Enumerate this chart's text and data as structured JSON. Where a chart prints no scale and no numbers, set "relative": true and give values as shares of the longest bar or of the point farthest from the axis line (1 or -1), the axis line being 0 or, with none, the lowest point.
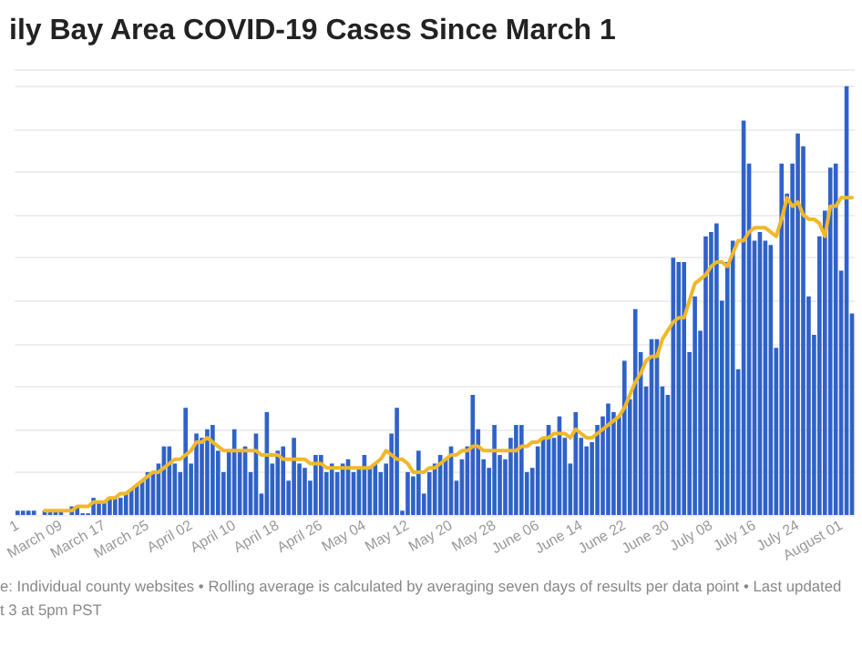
{
  "chart_data": {
    "type": "bar",
    "title": "ily Bay Area COVID-19 Cases Since March 1",
    "annotations": [
      "e: Individual county websites • Rolling average is calculated by averaging seven days of results per data point • Last updated",
      "t 3 at 5pm PST"
    ],
    "categories": [
      "1",
      null,
      null,
      null,
      null,
      null,
      null,
      null,
      "March 09",
      null,
      null,
      null,
      null,
      null,
      null,
      null,
      "March 17",
      null,
      null,
      null,
      null,
      null,
      null,
      null,
      "March 25",
      null,
      null,
      null,
      null,
      null,
      null,
      null,
      "April 02",
      null,
      null,
      null,
      null,
      null,
      null,
      null,
      "April 10",
      null,
      null,
      null,
      null,
      null,
      null,
      null,
      "April 18",
      null,
      null,
      null,
      null,
      null,
      null,
      null,
      "April 26",
      null,
      null,
      null,
      null,
      null,
      null,
      null,
      "May 04",
      null,
      null,
      null,
      null,
      null,
      null,
      null,
      "May 12",
      null,
      null,
      null,
      null,
      null,
      null,
      null,
      "May 20",
      null,
      null,
      null,
      null,
      null,
      null,
      null,
      "May 28",
      null,
      null,
      null,
      null,
      null,
      null,
      null,
      "June 06",
      null,
      null,
      null,
      null,
      null,
      null,
      null,
      "June 14",
      null,
      null,
      null,
      null,
      null,
      null,
      null,
      "June 22",
      null,
      null,
      null,
      null,
      null,
      null,
      null,
      "June 30",
      null,
      null,
      null,
      null,
      null,
      null,
      null,
      "July 08",
      null,
      null,
      null,
      null,
      null,
      null,
      null,
      "July 16",
      null,
      null,
      null,
      null,
      null,
      null,
      null,
      "July 24",
      null,
      null,
      null,
      null,
      null,
      null,
      null,
      "August 01",
      null,
      null
    ],
    "series": [
      {
        "color": "#2f62c8",
        "values": [
          0.01,
          0.01,
          0.01,
          0.01,
          null,
          0.01,
          0.01,
          0.01,
          0.01,
          null,
          0.02,
          0.02,
          0.004,
          0.004,
          0.04,
          0.03,
          0.03,
          0.04,
          0.04,
          0.04,
          0.05,
          0.06,
          0.07,
          0.08,
          0.1,
          0.1,
          0.12,
          0.16,
          0.16,
          0.12,
          0.1,
          0.25,
          0.12,
          0.19,
          0.18,
          0.2,
          0.21,
          0.15,
          0.1,
          0.15,
          0.2,
          0.15,
          0.16,
          0.1,
          0.19,
          0.05,
          0.24,
          0.12,
          0.15,
          0.16,
          0.08,
          0.18,
          0.12,
          0.11,
          0.08,
          0.14,
          0.14,
          0.1,
          0.12,
          0.1,
          0.12,
          0.13,
          0.1,
          0.11,
          0.14,
          0.11,
          0.12,
          0.1,
          0.12,
          0.19,
          0.25,
          0.01,
          0.1,
          0.09,
          0.15,
          0.05,
          0.1,
          0.12,
          0.14,
          0.13,
          0.16,
          0.08,
          0.13,
          0.16,
          0.28,
          0.2,
          0.13,
          0.11,
          0.21,
          0.14,
          0.13,
          0.18,
          0.21,
          0.21,
          0.1,
          0.11,
          0.16,
          0.18,
          0.21,
          0.18,
          0.23,
          0.18,
          0.12,
          0.24,
          0.18,
          0.16,
          0.17,
          0.21,
          0.23,
          0.26,
          0.24,
          0.23,
          0.36,
          0.27,
          0.48,
          0.38,
          0.3,
          0.41,
          0.41,
          0.3,
          0.28,
          0.6,
          0.59,
          0.59,
          0.38,
          0.51,
          0.43,
          0.65,
          0.66,
          0.68,
          0.5,
          0.59,
          0.64,
          0.34,
          0.92,
          0.82,
          0.64,
          0.66,
          0.64,
          0.63,
          0.39,
          0.82,
          0.75,
          0.82,
          0.89,
          0.86,
          0.51,
          0.42,
          0.65,
          0.71,
          0.81,
          0.82,
          0.57,
          1,
          0.47
        ]
      },
      {
        "type": "line",
        "color": "#f0b82a",
        "values": [
          null,
          null,
          null,
          null,
          null,
          0.01,
          0.01,
          0.01,
          0.01,
          0.01,
          0.01,
          0.02,
          0.02,
          0.02,
          0.03,
          0.03,
          0.03,
          0.04,
          0.04,
          0.05,
          0.05,
          0.06,
          0.07,
          0.08,
          0.09,
          0.1,
          0.1,
          0.11,
          0.12,
          0.13,
          0.13,
          0.14,
          0.15,
          0.17,
          0.17,
          0.18,
          0.17,
          0.16,
          0.15,
          0.15,
          0.15,
          0.15,
          0.15,
          0.15,
          0.15,
          0.14,
          0.14,
          0.14,
          0.14,
          0.13,
          0.13,
          0.13,
          0.13,
          0.13,
          0.12,
          0.12,
          0.12,
          0.11,
          0.11,
          0.11,
          0.11,
          0.11,
          0.11,
          0.11,
          0.11,
          0.11,
          0.12,
          0.13,
          0.15,
          0.14,
          0.13,
          0.13,
          0.12,
          0.1,
          0.1,
          0.1,
          0.11,
          0.11,
          0.12,
          0.13,
          0.14,
          0.14,
          0.15,
          0.15,
          0.16,
          0.16,
          0.15,
          0.15,
          0.15,
          0.15,
          0.15,
          0.15,
          0.15,
          0.16,
          0.16,
          0.17,
          0.17,
          0.18,
          0.18,
          0.19,
          0.19,
          0.19,
          0.18,
          0.2,
          0.19,
          0.18,
          0.18,
          0.19,
          0.2,
          0.21,
          0.22,
          0.23,
          0.25,
          0.28,
          0.31,
          0.33,
          0.36,
          0.37,
          0.37,
          0.41,
          0.43,
          0.45,
          0.46,
          0.46,
          0.5,
          0.54,
          0.55,
          0.56,
          0.58,
          0.59,
          0.59,
          0.58,
          0.61,
          0.64,
          0.64,
          0.66,
          0.67,
          0.67,
          0.67,
          0.66,
          0.65,
          0.69,
          0.74,
          0.72,
          0.73,
          0.7,
          0.69,
          0.69,
          0.68,
          0.65,
          0.72,
          0.72,
          0.74,
          0.74,
          0.74
        ]
      }
    ],
    "relative": true,
    "grid": "y"
  }
}
